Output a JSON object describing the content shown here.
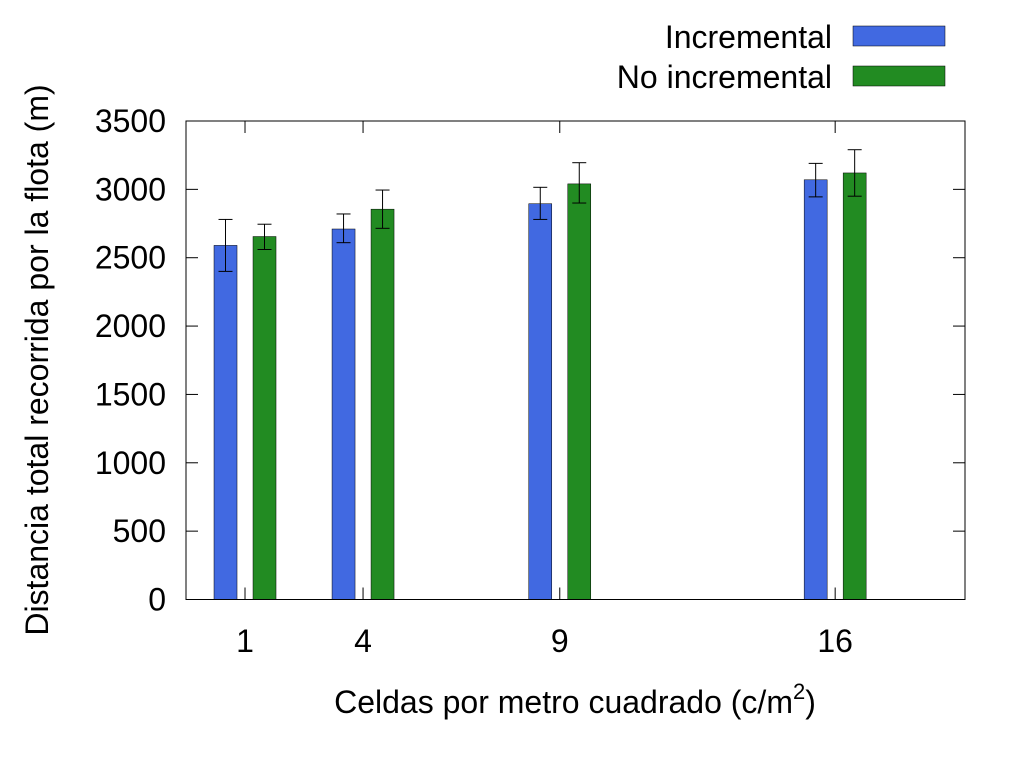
{
  "chart_data": {
    "type": "bar",
    "xlabel": "Celdas por metro cuadrado (c/m",
    "xlabel_sup": "2",
    "xlabel_tail": ")",
    "ylabel": "Distancia total recorrida por la flota (m)",
    "x": [
      1,
      4,
      9,
      16
    ],
    "x_tick_labels": [
      "1",
      "4",
      "9",
      "16"
    ],
    "xlim": [
      -0.5,
      19.3
    ],
    "ylim": [
      0,
      3500
    ],
    "y_ticks": [
      0,
      500,
      1000,
      1500,
      2000,
      2500,
      3000,
      3500
    ],
    "grid": false,
    "legend_position": "top-right",
    "error_bars": true,
    "series": [
      {
        "name": "Incremental",
        "color": "#4169e1",
        "values": [
          2590,
          2710,
          2895,
          3070
        ],
        "error_low": [
          2400,
          2610,
          2780,
          2945
        ],
        "error_high": [
          2780,
          2820,
          3015,
          3190
        ]
      },
      {
        "name": "No incremental",
        "color": "#228b22",
        "values": [
          2655,
          2855,
          3040,
          3120
        ],
        "error_low": [
          2560,
          2715,
          2900,
          2950
        ],
        "error_high": [
          2745,
          2995,
          3195,
          3290
        ]
      }
    ]
  }
}
